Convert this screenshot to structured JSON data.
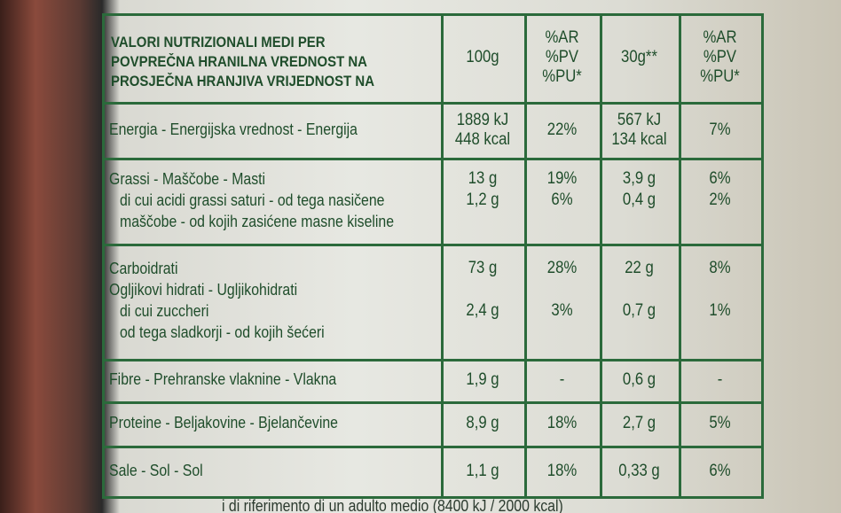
{
  "header": {
    "label": [
      "VALORI NUTRIZIONALI MEDI PER",
      "POVPREČNA HRANILNA VREDNOST NA",
      "PROSJEČNA HRANJIVA VRIJEDNOST NA"
    ],
    "col1": "100g",
    "col2": [
      "%AR",
      "%PV",
      "%PU*"
    ],
    "col3": "30g**",
    "col4": [
      "%AR",
      "%PV",
      "%PU*"
    ]
  },
  "table": {
    "rows": [
      {
        "label": [
          "Energia - Energijska vrednost - Energija"
        ],
        "col1": [
          "1889 kJ",
          "448 kcal"
        ],
        "col2": [
          "22%"
        ],
        "col3": [
          "567 kJ",
          "134 kcal"
        ],
        "col4": [
          "7%"
        ]
      },
      {
        "label": [
          "Grassi - Maščobe - Masti",
          "di cui acidi grassi saturi - od tega nasičene",
          "maščobe - od kojih zasićene masne kiseline"
        ],
        "col1": [
          "13 g",
          "1,2 g"
        ],
        "col2": [
          "19%",
          "6%"
        ],
        "col3": [
          "3,9 g",
          "0,4 g"
        ],
        "col4": [
          "6%",
          "2%"
        ]
      },
      {
        "label": [
          "Carboidrati",
          "Ogljikovi hidrati - Ugljikohidrati",
          "di cui zuccheri",
          "od tega sladkorji - od kojih šećeri"
        ],
        "col1": [
          "73 g",
          "2,4 g"
        ],
        "col2": [
          "28%",
          "3%"
        ],
        "col3": [
          "22 g",
          "0,7 g"
        ],
        "col4": [
          "8%",
          "1%"
        ]
      },
      {
        "label": [
          "Fibre - Prehranske vlaknine - Vlakna"
        ],
        "col1": [
          "1,9 g"
        ],
        "col2": [
          "-"
        ],
        "col3": [
          "0,6 g"
        ],
        "col4": [
          "-"
        ]
      },
      {
        "label": [
          "Proteine - Beljakovine - Bjelančevine"
        ],
        "col1": [
          "8,9 g"
        ],
        "col2": [
          "18%"
        ],
        "col3": [
          "2,7 g"
        ],
        "col4": [
          "5%"
        ]
      },
      {
        "label": [
          "Sale - Sol - Sol"
        ],
        "col1": [
          "1,1 g"
        ],
        "col2": [
          "18%"
        ],
        "col3": [
          "0,33 g"
        ],
        "col4": [
          "6%"
        ]
      }
    ]
  },
  "footer": "i di riferimento di un adulto medio (8400 kJ / 2000 kcal)"
}
